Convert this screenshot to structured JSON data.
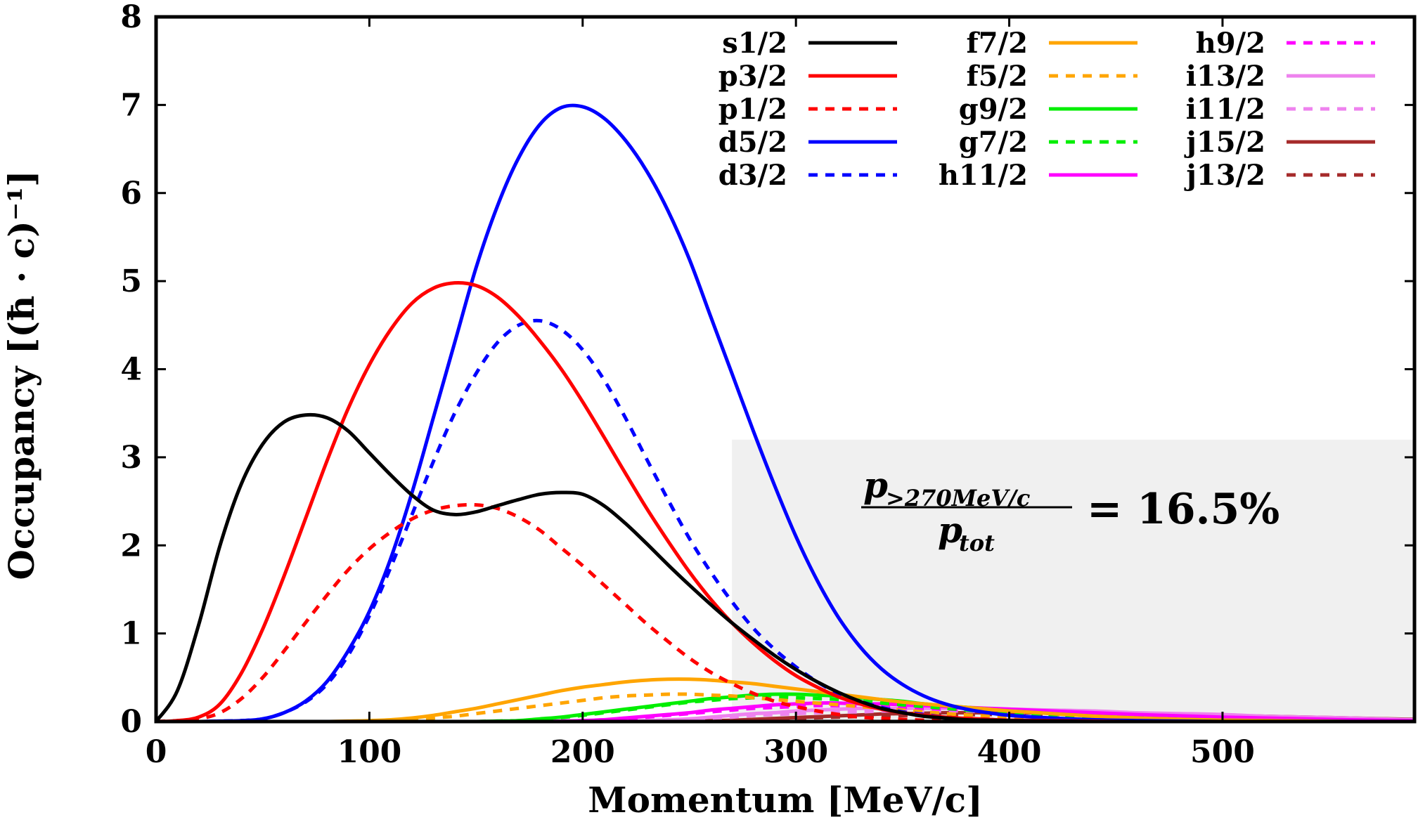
{
  "chart_data": {
    "type": "line",
    "title": "",
    "xlabel": "Momentum [MeV/c]",
    "ylabel": "Occupancy [(ħ · c)⁻¹]",
    "xlim": [
      0,
      590
    ],
    "ylim": [
      0,
      8
    ],
    "xticks": [
      "0",
      "100",
      "200",
      "300",
      "400",
      "500"
    ],
    "yticks": [
      "0",
      "1",
      "2",
      "3",
      "4",
      "5",
      "6",
      "7",
      "8"
    ],
    "grid": false,
    "legend_position": "top-right",
    "shaded_region": {
      "x_from": 270,
      "x_to": 590,
      "y_from": 0,
      "y_to": 3.2,
      "color": "#f0f0f0"
    },
    "annotation": {
      "numerator": "p",
      "numerator_sub": ">270MeV/c",
      "denominator": "p",
      "denominator_sub": "tot",
      "equals": "= 16.5%"
    },
    "x": [
      0,
      10,
      20,
      30,
      40,
      50,
      60,
      70,
      80,
      90,
      100,
      110,
      120,
      130,
      140,
      150,
      160,
      170,
      180,
      190,
      200,
      210,
      220,
      230,
      240,
      250,
      260,
      270,
      280,
      290,
      300,
      310,
      320,
      330,
      340,
      350,
      360,
      370,
      380,
      390,
      400,
      420,
      440,
      460,
      480,
      500,
      520,
      540,
      560,
      590
    ],
    "series": [
      {
        "name": "s1/2",
        "color": "#000000",
        "dash": "solid",
        "values": [
          0,
          0.35,
          1.1,
          2.0,
          2.7,
          3.15,
          3.4,
          3.48,
          3.45,
          3.3,
          3.05,
          2.8,
          2.57,
          2.4,
          2.35,
          2.38,
          2.45,
          2.52,
          2.58,
          2.6,
          2.58,
          2.45,
          2.25,
          2.02,
          1.78,
          1.55,
          1.33,
          1.12,
          0.93,
          0.75,
          0.59,
          0.45,
          0.33,
          0.23,
          0.15,
          0.1,
          0.06,
          0.04,
          0.02,
          0.015,
          0.01,
          0.005,
          0,
          0,
          0,
          0,
          0,
          0,
          0,
          0
        ]
      },
      {
        "name": "p3/2",
        "color": "#ff0000",
        "dash": "solid",
        "values": [
          0,
          0.01,
          0.05,
          0.2,
          0.55,
          1.05,
          1.65,
          2.3,
          2.95,
          3.55,
          4.05,
          4.45,
          4.75,
          4.92,
          4.98,
          4.95,
          4.82,
          4.6,
          4.32,
          4.0,
          3.63,
          3.23,
          2.82,
          2.42,
          2.05,
          1.7,
          1.39,
          1.12,
          0.89,
          0.69,
          0.52,
          0.39,
          0.28,
          0.2,
          0.14,
          0.1,
          0.07,
          0.05,
          0.035,
          0.025,
          0.015,
          0.01,
          0.005,
          0,
          0,
          0,
          0,
          0,
          0,
          0
        ]
      },
      {
        "name": "p1/2",
        "color": "#ff0000",
        "dash": "dashed",
        "values": [
          0,
          0.01,
          0.03,
          0.1,
          0.26,
          0.5,
          0.8,
          1.12,
          1.43,
          1.72,
          1.96,
          2.15,
          2.3,
          2.4,
          2.45,
          2.46,
          2.42,
          2.32,
          2.17,
          1.97,
          1.77,
          1.55,
          1.33,
          1.11,
          0.91,
          0.72,
          0.56,
          0.43,
          0.32,
          0.23,
          0.17,
          0.12,
          0.08,
          0.05,
          0.035,
          0.025,
          0.015,
          0.01,
          0.005,
          0,
          0,
          0,
          0,
          0,
          0,
          0,
          0,
          0,
          0,
          0
        ]
      },
      {
        "name": "d5/2",
        "color": "#0000ff",
        "dash": "solid",
        "values": [
          0,
          0,
          0,
          0.005,
          0.01,
          0.03,
          0.1,
          0.23,
          0.45,
          0.8,
          1.25,
          1.85,
          2.6,
          3.45,
          4.3,
          5.15,
          5.85,
          6.4,
          6.78,
          6.97,
          6.98,
          6.85,
          6.6,
          6.25,
          5.8,
          5.25,
          4.6,
          3.95,
          3.3,
          2.68,
          2.1,
          1.6,
          1.18,
          0.85,
          0.6,
          0.42,
          0.29,
          0.2,
          0.14,
          0.1,
          0.07,
          0.04,
          0.02,
          0.01,
          0.005,
          0,
          0,
          0,
          0,
          0
        ]
      },
      {
        "name": "d3/2",
        "color": "#0000ff",
        "dash": "dashed",
        "values": [
          0,
          0,
          0,
          0.005,
          0.01,
          0.03,
          0.1,
          0.22,
          0.42,
          0.75,
          1.2,
          1.75,
          2.35,
          2.95,
          3.5,
          3.95,
          4.3,
          4.5,
          4.55,
          4.45,
          4.22,
          3.88,
          3.45,
          2.98,
          2.52,
          2.08,
          1.7,
          1.36,
          1.06,
          0.82,
          0.62,
          0.45,
          0.32,
          0.23,
          0.16,
          0.11,
          0.08,
          0.05,
          0.035,
          0.025,
          0.015,
          0.01,
          0.005,
          0,
          0,
          0,
          0,
          0,
          0,
          0
        ]
      },
      {
        "name": "f7/2",
        "color": "#ffa500",
        "dash": "solid",
        "values": [
          0,
          0,
          0,
          0,
          0,
          0,
          0,
          0,
          0,
          0.005,
          0.01,
          0.02,
          0.04,
          0.07,
          0.11,
          0.15,
          0.2,
          0.25,
          0.3,
          0.35,
          0.39,
          0.42,
          0.45,
          0.47,
          0.48,
          0.48,
          0.47,
          0.45,
          0.43,
          0.4,
          0.37,
          0.34,
          0.31,
          0.28,
          0.25,
          0.22,
          0.2,
          0.18,
          0.16,
          0.14,
          0.12,
          0.09,
          0.06,
          0.04,
          0.025,
          0.015,
          0.01,
          0.005,
          0,
          0
        ]
      },
      {
        "name": "f5/2",
        "color": "#ffa500",
        "dash": "dashed",
        "values": [
          0,
          0,
          0,
          0,
          0,
          0,
          0,
          0,
          0,
          0,
          0.005,
          0.01,
          0.02,
          0.04,
          0.06,
          0.09,
          0.12,
          0.15,
          0.18,
          0.21,
          0.24,
          0.27,
          0.29,
          0.3,
          0.31,
          0.31,
          0.3,
          0.29,
          0.27,
          0.25,
          0.23,
          0.21,
          0.19,
          0.17,
          0.15,
          0.13,
          0.11,
          0.09,
          0.075,
          0.06,
          0.05,
          0.035,
          0.02,
          0.01,
          0.005,
          0,
          0,
          0,
          0,
          0
        ]
      },
      {
        "name": "g9/2",
        "color": "#00ee00",
        "dash": "solid",
        "values": [
          0,
          0,
          0,
          0,
          0,
          0,
          0,
          0,
          0,
          0,
          0,
          0,
          0,
          0,
          0,
          0,
          0.005,
          0.01,
          0.03,
          0.05,
          0.08,
          0.11,
          0.14,
          0.17,
          0.2,
          0.23,
          0.26,
          0.28,
          0.3,
          0.31,
          0.31,
          0.3,
          0.29,
          0.27,
          0.25,
          0.23,
          0.2,
          0.18,
          0.16,
          0.14,
          0.12,
          0.09,
          0.06,
          0.04,
          0.025,
          0.015,
          0.01,
          0.005,
          0,
          0
        ]
      },
      {
        "name": "g7/2",
        "color": "#00ee00",
        "dash": "dashed",
        "values": [
          0,
          0,
          0,
          0,
          0,
          0,
          0,
          0,
          0,
          0,
          0,
          0,
          0,
          0,
          0,
          0,
          0.005,
          0.01,
          0.025,
          0.045,
          0.07,
          0.1,
          0.13,
          0.16,
          0.19,
          0.22,
          0.24,
          0.26,
          0.27,
          0.28,
          0.27,
          0.26,
          0.25,
          0.23,
          0.21,
          0.19,
          0.17,
          0.15,
          0.13,
          0.11,
          0.09,
          0.07,
          0.05,
          0.03,
          0.02,
          0.01,
          0.005,
          0,
          0,
          0
        ]
      },
      {
        "name": "h11/2",
        "color": "#ff00ff",
        "dash": "solid",
        "values": [
          0,
          0,
          0,
          0,
          0,
          0,
          0,
          0,
          0,
          0,
          0,
          0,
          0,
          0,
          0,
          0,
          0,
          0,
          0,
          0.005,
          0.01,
          0.02,
          0.04,
          0.06,
          0.08,
          0.1,
          0.13,
          0.15,
          0.17,
          0.19,
          0.2,
          0.21,
          0.21,
          0.2,
          0.2,
          0.19,
          0.18,
          0.17,
          0.16,
          0.15,
          0.14,
          0.12,
          0.1,
          0.08,
          0.065,
          0.05,
          0.04,
          0.03,
          0.02,
          0.01
        ]
      },
      {
        "name": "h9/2",
        "color": "#ff00ff",
        "dash": "dashed",
        "values": [
          0,
          0,
          0,
          0,
          0,
          0,
          0,
          0,
          0,
          0,
          0,
          0,
          0,
          0,
          0,
          0,
          0,
          0,
          0,
          0.005,
          0.01,
          0.02,
          0.03,
          0.05,
          0.07,
          0.09,
          0.11,
          0.13,
          0.15,
          0.16,
          0.17,
          0.18,
          0.18,
          0.18,
          0.17,
          0.16,
          0.15,
          0.14,
          0.13,
          0.12,
          0.11,
          0.09,
          0.07,
          0.05,
          0.04,
          0.03,
          0.02,
          0.015,
          0.01,
          0.005
        ]
      },
      {
        "name": "i13/2",
        "color": "#ee82ee",
        "dash": "solid",
        "values": [
          0,
          0,
          0,
          0,
          0,
          0,
          0,
          0,
          0,
          0,
          0,
          0,
          0,
          0,
          0,
          0,
          0,
          0,
          0,
          0,
          0,
          0,
          0.005,
          0.01,
          0.02,
          0.03,
          0.05,
          0.07,
          0.09,
          0.1,
          0.12,
          0.13,
          0.14,
          0.15,
          0.15,
          0.15,
          0.15,
          0.15,
          0.15,
          0.14,
          0.14,
          0.13,
          0.12,
          0.1,
          0.09,
          0.08,
          0.06,
          0.05,
          0.04,
          0.02
        ]
      },
      {
        "name": "i11/2",
        "color": "#ee82ee",
        "dash": "dashed",
        "values": [
          0,
          0,
          0,
          0,
          0,
          0,
          0,
          0,
          0,
          0,
          0,
          0,
          0,
          0,
          0,
          0,
          0,
          0,
          0,
          0,
          0,
          0,
          0.005,
          0.01,
          0.015,
          0.025,
          0.04,
          0.05,
          0.07,
          0.08,
          0.09,
          0.1,
          0.11,
          0.11,
          0.12,
          0.12,
          0.12,
          0.12,
          0.12,
          0.11,
          0.11,
          0.1,
          0.09,
          0.08,
          0.07,
          0.06,
          0.05,
          0.04,
          0.03,
          0.02
        ]
      },
      {
        "name": "j15/2",
        "color": "#a52a2a",
        "dash": "solid",
        "values": [
          0,
          0,
          0,
          0,
          0,
          0,
          0,
          0,
          0,
          0,
          0,
          0,
          0,
          0,
          0,
          0,
          0,
          0,
          0,
          0,
          0,
          0,
          0,
          0,
          0,
          0.005,
          0.01,
          0.015,
          0.025,
          0.035,
          0.045,
          0.055,
          0.065,
          0.075,
          0.085,
          0.09,
          0.095,
          0.1,
          0.1,
          0.1,
          0.1,
          0.1,
          0.095,
          0.09,
          0.08,
          0.07,
          0.06,
          0.05,
          0.04,
          0.025
        ]
      },
      {
        "name": "j13/2",
        "color": "#a52a2a",
        "dash": "dashed",
        "values": [
          0,
          0,
          0,
          0,
          0,
          0,
          0,
          0,
          0,
          0,
          0,
          0,
          0,
          0,
          0,
          0,
          0,
          0,
          0,
          0,
          0,
          0,
          0,
          0,
          0,
          0.005,
          0.008,
          0.012,
          0.02,
          0.028,
          0.035,
          0.043,
          0.05,
          0.057,
          0.063,
          0.068,
          0.072,
          0.075,
          0.078,
          0.08,
          0.08,
          0.08,
          0.078,
          0.075,
          0.07,
          0.06,
          0.05,
          0.04,
          0.03,
          0.02
        ]
      }
    ]
  }
}
